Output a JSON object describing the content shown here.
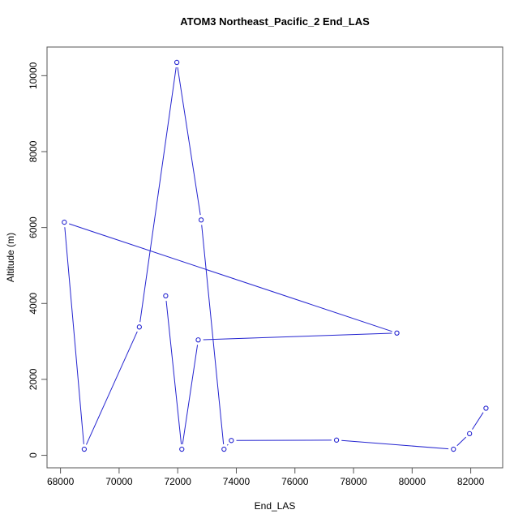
{
  "chart_data": {
    "type": "line",
    "title": "ATOM3 Northeast_Pacific_2 End_LAS",
    "xlabel": "End_LAS",
    "ylabel": "Altitude (m)",
    "xlim": [
      67540,
      83090
    ],
    "ylim": [
      -330,
      10755
    ],
    "x_ticks": [
      68000,
      70000,
      72000,
      74000,
      76000,
      78000,
      80000,
      82000
    ],
    "y_ticks": [
      0,
      2000,
      4000,
      6000,
      8000,
      10000
    ],
    "grid": false,
    "legend": "none",
    "marker": "open-circle",
    "line_style": "points-with-segments (R type=b, gaps at markers)",
    "line_color": "#2424D0",
    "marker_color": "#2424D0",
    "frame_color": "#555555",
    "text_color": "#000000",
    "background_color": "#ffffff",
    "points": [
      {
        "x": 71590,
        "y": 4200
      },
      {
        "x": 72140,
        "y": 160
      },
      {
        "x": 72700,
        "y": 3040
      },
      {
        "x": 79480,
        "y": 3220
      },
      {
        "x": 68130,
        "y": 6140
      },
      {
        "x": 68810,
        "y": 160
      },
      {
        "x": 70690,
        "y": 3380
      },
      {
        "x": 71970,
        "y": 10350
      },
      {
        "x": 72800,
        "y": 6200
      },
      {
        "x": 73580,
        "y": 160
      },
      {
        "x": 73830,
        "y": 390
      },
      {
        "x": 77420,
        "y": 400
      },
      {
        "x": 81410,
        "y": 160
      },
      {
        "x": 81960,
        "y": 570
      },
      {
        "x": 82520,
        "y": 1240
      }
    ]
  }
}
